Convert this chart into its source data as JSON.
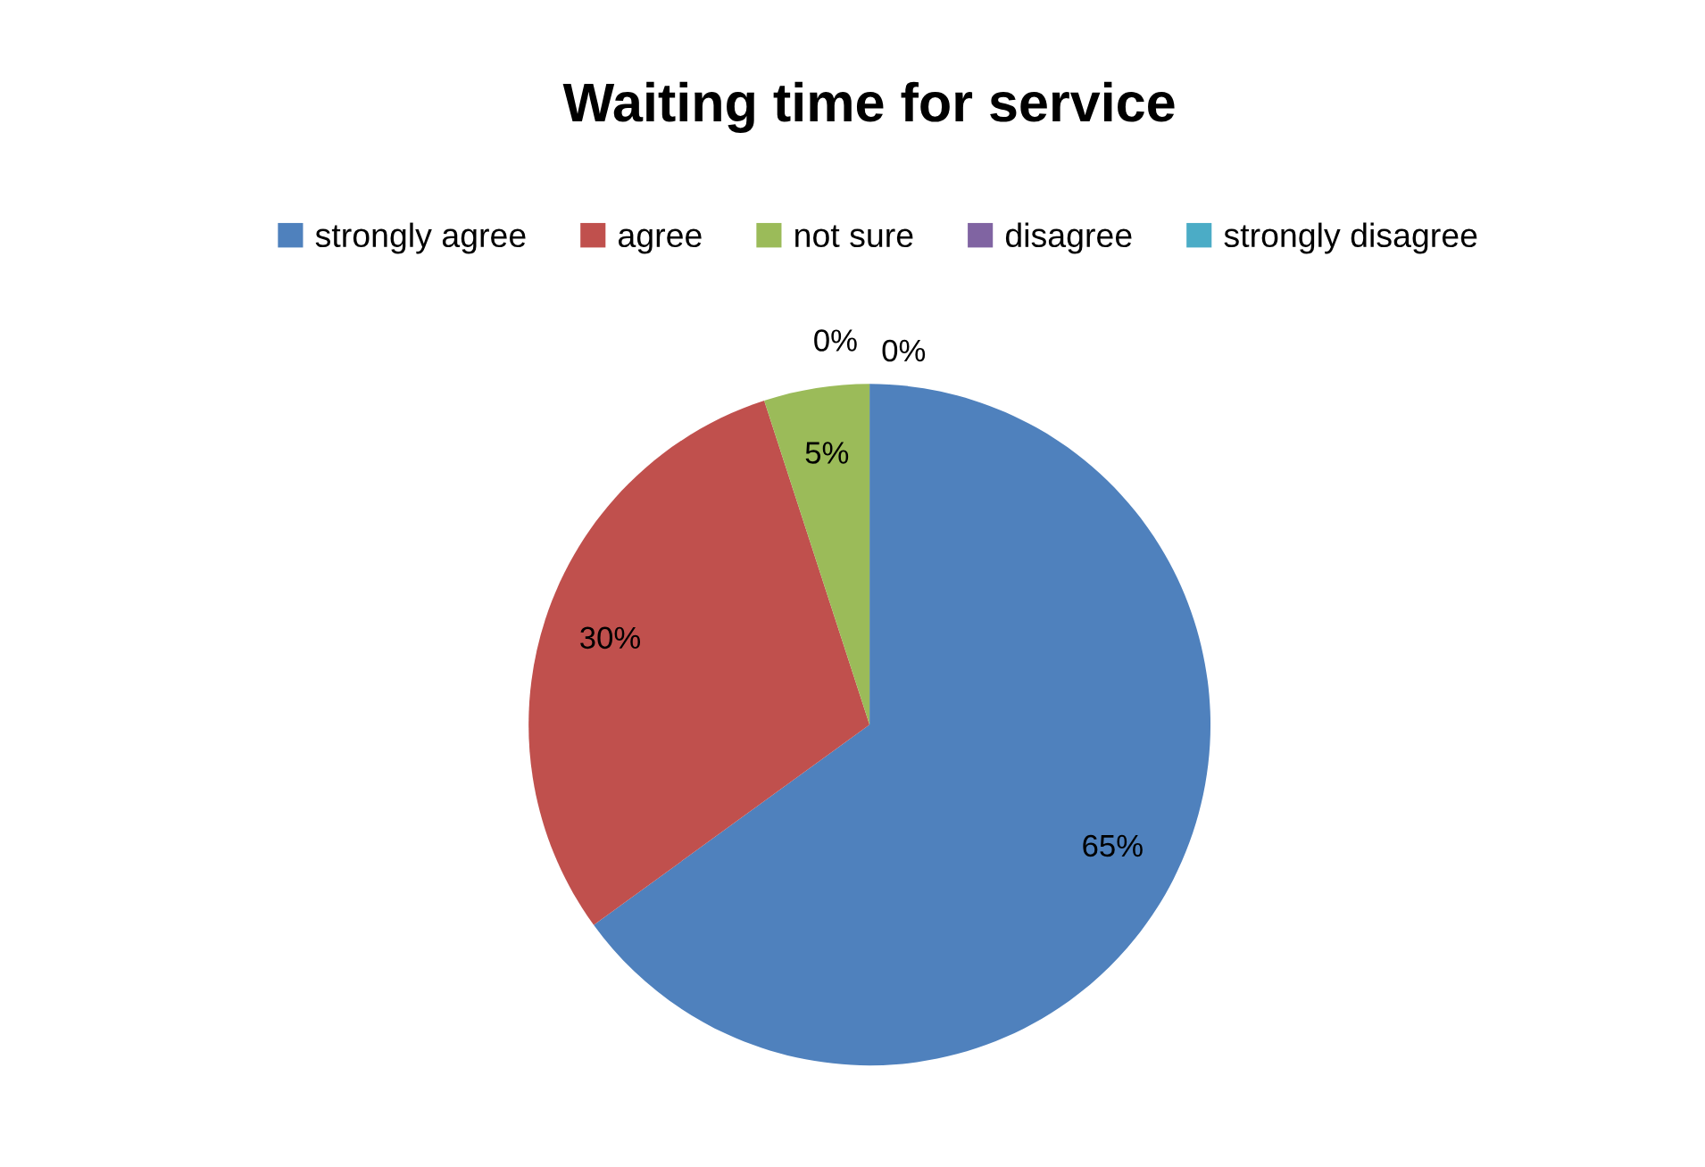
{
  "chart_data": {
    "type": "pie",
    "title": "Waiting time for service",
    "categories": [
      "strongly agree",
      "agree",
      "not sure",
      "disagree",
      "strongly disagree"
    ],
    "values": [
      65,
      30,
      5,
      0,
      0
    ],
    "colors": [
      "#4f81bd",
      "#c0504d",
      "#9bbb59",
      "#8064a2",
      "#4bacc6"
    ],
    "value_labels": [
      "65%",
      "30%",
      "5%",
      "0%",
      "0%"
    ],
    "legend": "top"
  }
}
